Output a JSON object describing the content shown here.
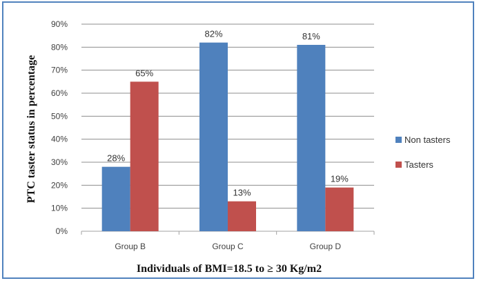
{
  "chart_data": {
    "type": "bar",
    "categories": [
      "Group B",
      "Group C",
      "Group D"
    ],
    "series": [
      {
        "name": "Non tasters",
        "color": "#4f81bd",
        "values": [
          28,
          82,
          81
        ],
        "labels": [
          "28%",
          "82%",
          "81%"
        ]
      },
      {
        "name": "Tasters",
        "color": "#c0504d",
        "values": [
          65,
          13,
          19
        ],
        "labels": [
          "65%",
          "13%",
          "19%"
        ]
      }
    ],
    "ylim": [
      0,
      90
    ],
    "yticks": [
      "0%",
      "10%",
      "20%",
      "30%",
      "40%",
      "50%",
      "60%",
      "70%",
      "80%",
      "90%"
    ],
    "xlabel": "Individuals of BMI=18.5 to ≥ 30 Kg/m2",
    "ylabel": "PTC taster status in percentage",
    "title": "",
    "grid": true,
    "legend_position": "right"
  }
}
